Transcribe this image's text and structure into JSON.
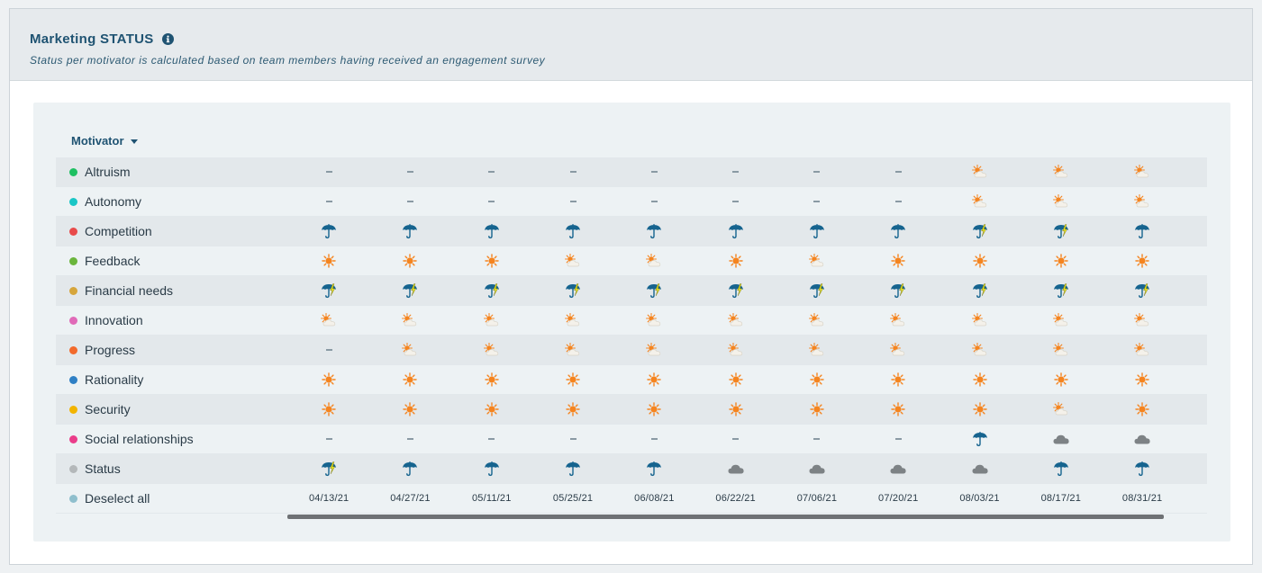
{
  "header": {
    "title": "Marketing STATUS",
    "subtitle": "Status per motivator is calculated based on team members having received an engagement survey"
  },
  "table": {
    "column_header": "Motivator",
    "dates": [
      "04/13/21",
      "04/27/21",
      "05/11/21",
      "05/25/21",
      "06/08/21",
      "06/22/21",
      "07/06/21",
      "07/20/21",
      "08/03/21",
      "08/17/21",
      "08/31/21"
    ],
    "deselect_label": "Deselect all",
    "deselect_color": "#8fbfcd",
    "rows": [
      {
        "label": "Altruism",
        "color": "#1ec062",
        "cells": [
          "none",
          "none",
          "none",
          "none",
          "none",
          "none",
          "none",
          "none",
          "partly-sunny",
          "partly-sunny",
          "partly-sunny"
        ]
      },
      {
        "label": "Autonomy",
        "color": "#19c6c6",
        "cells": [
          "none",
          "none",
          "none",
          "none",
          "none",
          "none",
          "none",
          "none",
          "partly-sunny",
          "partly-sunny",
          "partly-sunny"
        ]
      },
      {
        "label": "Competition",
        "color": "#e84a4a",
        "cells": [
          "rain",
          "rain",
          "rain",
          "rain",
          "rain",
          "rain",
          "rain",
          "rain",
          "storm",
          "storm",
          "rain"
        ]
      },
      {
        "label": "Feedback",
        "color": "#6ab53c",
        "cells": [
          "sunny",
          "sunny",
          "sunny",
          "partly-sunny",
          "partly-sunny",
          "sunny",
          "partly-sunny",
          "sunny",
          "sunny",
          "sunny",
          "sunny"
        ]
      },
      {
        "label": "Financial needs",
        "color": "#d6a63c",
        "cells": [
          "storm",
          "storm",
          "storm",
          "storm",
          "storm",
          "storm",
          "storm",
          "storm",
          "storm",
          "storm",
          "storm"
        ]
      },
      {
        "label": "Innovation",
        "color": "#e06ab8",
        "cells": [
          "partly-sunny",
          "partly-sunny",
          "partly-sunny",
          "partly-sunny",
          "partly-sunny",
          "partly-sunny",
          "partly-sunny",
          "partly-sunny",
          "partly-sunny",
          "partly-sunny",
          "partly-sunny"
        ]
      },
      {
        "label": "Progress",
        "color": "#f26a2c",
        "cells": [
          "none",
          "partly-sunny",
          "partly-sunny",
          "partly-sunny",
          "partly-sunny",
          "partly-sunny",
          "partly-sunny",
          "partly-sunny",
          "partly-sunny",
          "partly-sunny",
          "partly-sunny"
        ]
      },
      {
        "label": "Rationality",
        "color": "#2f80c5",
        "cells": [
          "sunny",
          "sunny",
          "sunny",
          "sunny",
          "sunny",
          "sunny",
          "sunny",
          "sunny",
          "sunny",
          "sunny",
          "sunny"
        ]
      },
      {
        "label": "Security",
        "color": "#f2b400",
        "cells": [
          "sunny",
          "sunny",
          "sunny",
          "sunny",
          "sunny",
          "sunny",
          "sunny",
          "sunny",
          "sunny",
          "partly-sunny",
          "sunny"
        ]
      },
      {
        "label": "Social relationships",
        "color": "#ea3d8a",
        "cells": [
          "none",
          "none",
          "none",
          "none",
          "none",
          "none",
          "none",
          "none",
          "rain",
          "cloudy",
          "cloudy"
        ]
      },
      {
        "label": "Status",
        "color": "#b4b8ba",
        "cells": [
          "storm",
          "rain",
          "rain",
          "rain",
          "rain",
          "cloudy",
          "cloudy",
          "cloudy",
          "cloudy",
          "rain",
          "rain"
        ]
      }
    ]
  },
  "colors": {
    "accent": "#1f5372",
    "sun": "#f5841f",
    "umbrella": "#16648f",
    "cloud": "#7d8285",
    "bolt": "#e6e020"
  }
}
